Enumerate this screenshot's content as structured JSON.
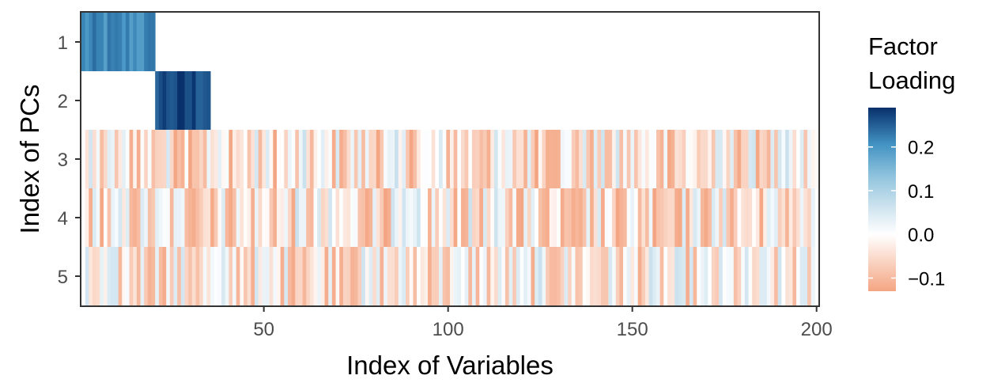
{
  "chart_data": {
    "type": "heatmap",
    "xlabel": "Index of Variables",
    "ylabel": "Index of PCs",
    "x_range": [
      1,
      200
    ],
    "x_ticks": [
      50,
      100,
      150,
      200
    ],
    "x_tick_labels": [
      "50",
      "100",
      "150",
      "200"
    ],
    "y_categories": [
      "1",
      "2",
      "3",
      "4",
      "5"
    ],
    "legend_title": [
      "Factor",
      "Loading"
    ],
    "color_scale": {
      "min": -0.13,
      "max": 0.29,
      "mid": 0.0,
      "low_color": "#f4a582",
      "mid_color": "#ffffff",
      "high_color": "#08306b",
      "breaks": [
        0.2,
        0.1,
        0.0,
        -0.1
      ],
      "break_labels": [
        "0.2",
        "0.1",
        "0.0",
        "−0.1"
      ]
    },
    "blocks": [
      {
        "pc": 1,
        "from": 1,
        "to": 20,
        "typical_value": 0.22
      },
      {
        "pc": 2,
        "from": 21,
        "to": 35,
        "typical_value": 0.27
      }
    ],
    "noise_rows": [
      {
        "pc": 3,
        "from": 2,
        "to": 200,
        "range": [
          -0.13,
          0.11
        ]
      },
      {
        "pc": 4,
        "from": 2,
        "to": 199,
        "range": [
          -0.13,
          0.11
        ]
      },
      {
        "pc": 5,
        "from": 2,
        "to": 199,
        "range": [
          -0.12,
          0.11
        ]
      }
    ],
    "grid": false,
    "legend_position": "right"
  }
}
